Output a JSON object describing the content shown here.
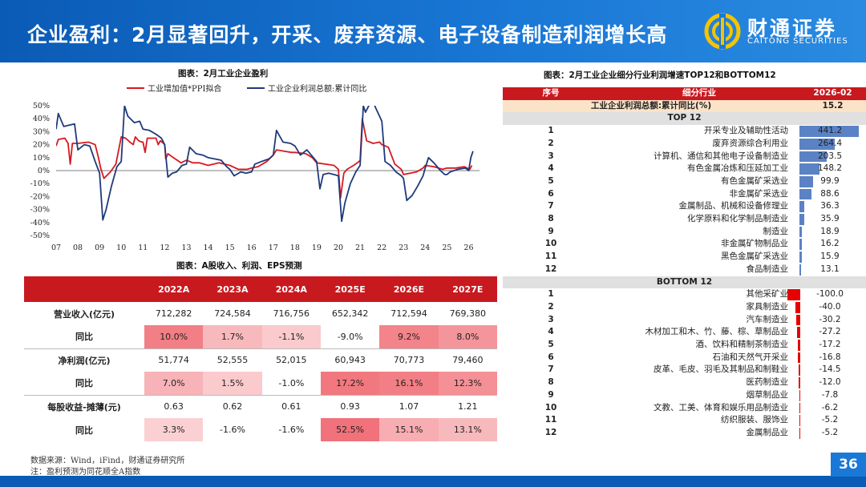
{
  "header": {
    "title": "企业盈利：2月显著回升，开采、废弃资源、电子设备制造利润增长高",
    "brand_cn": "财通证券",
    "brand_en": "CAITONG SECURITIES",
    "logo_icon": "caitong-logo-icon"
  },
  "colors": {
    "header_blue": "#0a5bb5",
    "accent_red": "#c8191f",
    "series_red": "#d7191f",
    "series_navy": "#1f3a7a",
    "bar_blue": "#5b82c4",
    "bar_red": "#e60000"
  },
  "chart_data": [
    {
      "type": "line",
      "title": "图表：2月工业企业盈利",
      "legend_position": "top",
      "ylim": [
        -50,
        50
      ],
      "yticks": [
        "50%",
        "40%",
        "30%",
        "20%",
        "10%",
        "0%",
        "-10%",
        "-20%",
        "-30%",
        "-40%",
        "-50%"
      ],
      "xticks": [
        "07",
        "08",
        "09",
        "10",
        "11",
        "12",
        "13",
        "14",
        "15",
        "16",
        "17",
        "18",
        "19",
        "20",
        "21",
        "22",
        "23",
        "24",
        "25",
        "26"
      ],
      "xlim": [
        2007,
        2026.5
      ],
      "series": [
        {
          "name": "工业增加值*PPI拟合",
          "color": "#d7191f",
          "points": [
            [
              2007.0,
              19
            ],
            [
              2007.1,
              24
            ],
            [
              2007.4,
              25
            ],
            [
              2007.55,
              21
            ],
            [
              2007.65,
              5
            ],
            [
              2007.75,
              21
            ],
            [
              2008.0,
              21
            ],
            [
              2008.5,
              22
            ],
            [
              2008.8,
              20
            ],
            [
              2008.95,
              10
            ],
            [
              2009.05,
              2
            ],
            [
              2009.2,
              -6
            ],
            [
              2009.5,
              -1
            ],
            [
              2009.75,
              5
            ],
            [
              2010.0,
              26
            ],
            [
              2010.2,
              25
            ],
            [
              2010.4,
              22
            ],
            [
              2010.55,
              20
            ],
            [
              2010.65,
              26
            ],
            [
              2010.8,
              23
            ],
            [
              2010.95,
              22
            ],
            [
              2011.0,
              22
            ],
            [
              2011.1,
              14
            ],
            [
              2011.2,
              25
            ],
            [
              2011.6,
              25
            ],
            [
              2011.7,
              20
            ],
            [
              2011.8,
              23
            ],
            [
              2011.95,
              21
            ],
            [
              2012.0,
              20
            ],
            [
              2012.05,
              9
            ],
            [
              2012.15,
              13
            ],
            [
              2012.4,
              10
            ],
            [
              2012.75,
              6
            ],
            [
              2013.0,
              8
            ],
            [
              2013.3,
              6
            ],
            [
              2013.6,
              6
            ],
            [
              2014.0,
              4
            ],
            [
              2014.5,
              6
            ],
            [
              2015.0,
              4
            ],
            [
              2015.4,
              1
            ],
            [
              2015.8,
              1
            ],
            [
              2016.0,
              2
            ],
            [
              2016.3,
              3
            ],
            [
              2016.7,
              7
            ],
            [
              2017.0,
              12
            ],
            [
              2017.15,
              16
            ],
            [
              2017.5,
              15
            ],
            [
              2017.85,
              14
            ],
            [
              2018.0,
              14
            ],
            [
              2018.5,
              13
            ],
            [
              2018.8,
              10
            ],
            [
              2019.0,
              6
            ],
            [
              2019.4,
              5
            ],
            [
              2019.8,
              4
            ],
            [
              2020.0,
              1
            ],
            [
              2020.1,
              -21
            ],
            [
              2020.25,
              -2
            ],
            [
              2020.4,
              1
            ],
            [
              2020.7,
              4
            ],
            [
              2020.95,
              7
            ],
            [
              2021.0,
              8
            ],
            [
              2021.1,
              40
            ],
            [
              2021.3,
              23
            ],
            [
              2021.6,
              21
            ],
            [
              2021.9,
              22
            ],
            [
              2022.0,
              20
            ],
            [
              2022.3,
              18
            ],
            [
              2022.6,
              5
            ],
            [
              2022.9,
              1
            ],
            [
              2023.0,
              -3
            ],
            [
              2023.3,
              -2
            ],
            [
              2023.6,
              -1
            ],
            [
              2023.9,
              2
            ],
            [
              2024.0,
              4
            ],
            [
              2024.4,
              3
            ],
            [
              2024.8,
              1
            ],
            [
              2025.0,
              2
            ],
            [
              2025.4,
              2
            ],
            [
              2025.8,
              3
            ],
            [
              2026.05,
              1
            ],
            [
              2026.15,
              4
            ]
          ]
        },
        {
          "name": "工业企业利润总额:累计同比",
          "color": "#1f3a7a",
          "points": [
            [
              2007.0,
              32
            ],
            [
              2007.1,
              44
            ],
            [
              2007.2,
              40
            ],
            [
              2007.35,
              34
            ],
            [
              2007.6,
              35
            ],
            [
              2007.85,
              36
            ],
            [
              2008.0,
              16
            ],
            [
              2008.3,
              20
            ],
            [
              2008.55,
              19
            ],
            [
              2008.8,
              7
            ],
            [
              2009.0,
              -2
            ],
            [
              2009.15,
              -38
            ],
            [
              2009.3,
              -30
            ],
            [
              2009.55,
              -12
            ],
            [
              2009.8,
              3
            ],
            [
              2010.0,
              7
            ],
            [
              2010.15,
              50
            ],
            [
              2010.3,
              42
            ],
            [
              2010.6,
              37
            ],
            [
              2010.85,
              38
            ],
            [
              2011.0,
              32
            ],
            [
              2011.3,
              31
            ],
            [
              2011.6,
              28
            ],
            [
              2011.85,
              25
            ],
            [
              2012.0,
              20
            ],
            [
              2012.15,
              -5
            ],
            [
              2012.35,
              -2
            ],
            [
              2012.55,
              -1
            ],
            [
              2012.8,
              4
            ],
            [
              2013.0,
              5
            ],
            [
              2013.15,
              18
            ],
            [
              2013.45,
              13
            ],
            [
              2013.75,
              12
            ],
            [
              2014.0,
              10
            ],
            [
              2014.3,
              9
            ],
            [
              2014.6,
              8
            ],
            [
              2014.85,
              3
            ],
            [
              2015.0,
              1
            ],
            [
              2015.2,
              -4
            ],
            [
              2015.5,
              -1
            ],
            [
              2015.75,
              -2
            ],
            [
              2016.0,
              -1
            ],
            [
              2016.15,
              5
            ],
            [
              2016.45,
              7
            ],
            [
              2016.8,
              9
            ],
            [
              2017.0,
              12
            ],
            [
              2017.15,
              31
            ],
            [
              2017.45,
              22
            ],
            [
              2017.8,
              21
            ],
            [
              2018.0,
              19
            ],
            [
              2018.25,
              12
            ],
            [
              2018.55,
              16
            ],
            [
              2018.8,
              11
            ],
            [
              2019.0,
              7
            ],
            [
              2019.15,
              -14
            ],
            [
              2019.3,
              -3
            ],
            [
              2019.55,
              -2
            ],
            [
              2019.8,
              -3
            ],
            [
              2020.0,
              -4
            ],
            [
              2020.15,
              -39
            ],
            [
              2020.3,
              -25
            ],
            [
              2020.55,
              -10
            ],
            [
              2020.8,
              -1
            ],
            [
              2021.0,
              4
            ],
            [
              2021.15,
              50
            ],
            [
              2021.25,
              45
            ],
            [
              2021.55,
              55
            ],
            [
              2021.7,
              49
            ],
            [
              2021.95,
              40
            ],
            [
              2022.0,
              38
            ],
            [
              2022.15,
              7
            ],
            [
              2022.4,
              4
            ],
            [
              2022.65,
              -1
            ],
            [
              2022.9,
              -4
            ],
            [
              2023.0,
              -6
            ],
            [
              2023.15,
              -23
            ],
            [
              2023.4,
              -19
            ],
            [
              2023.65,
              -12
            ],
            [
              2023.9,
              -4
            ],
            [
              2024.0,
              2
            ],
            [
              2024.15,
              10
            ],
            [
              2024.4,
              6
            ],
            [
              2024.7,
              0
            ],
            [
              2024.9,
              -3
            ],
            [
              2025.0,
              -3
            ],
            [
              2025.15,
              -1
            ],
            [
              2025.5,
              1
            ],
            [
              2025.85,
              2
            ],
            [
              2026.0,
              0
            ],
            [
              2026.1,
              10
            ],
            [
              2026.2,
              15
            ]
          ]
        }
      ]
    },
    {
      "type": "table",
      "title": "图表：A股收入、利润、EPS预测",
      "columns": [
        "2022A",
        "2023A",
        "2024A",
        "2025E",
        "2026E",
        "2027E"
      ],
      "rows": [
        {
          "label": "营业收入(亿元)",
          "values": [
            "712,282",
            "724,584",
            "716,756",
            "652,342",
            "712,594",
            "769,380"
          ],
          "shade": [
            null,
            null,
            null,
            null,
            null,
            null
          ]
        },
        {
          "label": "同比",
          "values": [
            "10.0%",
            "1.7%",
            "-1.1%",
            "-9.0%",
            "9.2%",
            "8.0%"
          ],
          "shade": [
            0.9,
            0.4,
            0.25,
            null,
            0.85,
            0.7
          ]
        },
        {
          "label": "净利润(亿元)",
          "values": [
            "51,774",
            "52,555",
            "52,015",
            "60,943",
            "70,773",
            "79,460"
          ],
          "shade": [
            null,
            null,
            null,
            null,
            null,
            null
          ]
        },
        {
          "label": "同比",
          "values": [
            "7.0%",
            "1.5%",
            "-1.0%",
            "17.2%",
            "16.1%",
            "12.3%"
          ],
          "shade": [
            0.45,
            0.25,
            null,
            0.95,
            0.9,
            0.75
          ]
        },
        {
          "label": "每股收益-摊薄(元)",
          "values": [
            "0.63",
            "0.62",
            "0.61",
            "0.93",
            "1.07",
            "1.21"
          ],
          "shade": [
            null,
            null,
            null,
            null,
            null,
            null
          ]
        },
        {
          "label": "同比",
          "values": [
            "3.3%",
            "-1.6%",
            "-1.6%",
            "52.5%",
            "15.1%",
            "13.1%"
          ],
          "shade": [
            0.2,
            null,
            null,
            1,
            0.5,
            0.4
          ]
        }
      ]
    },
    {
      "type": "table",
      "title": "图表：2月工业企业细分行业利润增速TOP12和BOTTOM12",
      "columns": [
        "序号",
        "细分行业",
        "2026-02"
      ],
      "total": {
        "label": "工业企业利润总额:累计同比(%)",
        "value": "15.2"
      },
      "top_label": "TOP 12",
      "bottom_label": "BOTTOM 12",
      "top": [
        {
          "rank": "1",
          "name": "开采专业及辅助性活动",
          "value": 441.2
        },
        {
          "rank": "2",
          "name": "废弃资源综合利用业",
          "value": 264.4
        },
        {
          "rank": "3",
          "name": "计算机、通信和其他电子设备制造业",
          "value": 203.5
        },
        {
          "rank": "4",
          "name": "有色金属冶炼和压延加工业",
          "value": 148.2
        },
        {
          "rank": "5",
          "name": "有色金属矿采选业",
          "value": 99.9
        },
        {
          "rank": "6",
          "name": "非金属矿采选业",
          "value": 88.6
        },
        {
          "rank": "7",
          "name": "金属制品、机械和设备修理业",
          "value": 36.3
        },
        {
          "rank": "8",
          "name": "化学原料和化学制品制造业",
          "value": 35.9
        },
        {
          "rank": "9",
          "name": "制造业",
          "value": 18.9
        },
        {
          "rank": "10",
          "name": "非金属矿物制品业",
          "value": 16.2
        },
        {
          "rank": "11",
          "name": "黑色金属矿采选业",
          "value": 15.9
        },
        {
          "rank": "12",
          "name": "食品制造业",
          "value": 13.1
        }
      ],
      "bottom": [
        {
          "rank": "1",
          "name": "其他采矿业",
          "value": -100.0
        },
        {
          "rank": "2",
          "name": "家具制造业",
          "value": -40.0
        },
        {
          "rank": "3",
          "name": "汽车制造业",
          "value": -30.2
        },
        {
          "rank": "4",
          "name": "木材加工和木、竹、藤、棕、草制品业",
          "value": -27.2
        },
        {
          "rank": "5",
          "name": "酒、饮料和精制茶制造业",
          "value": -17.2
        },
        {
          "rank": "6",
          "name": "石油和天然气开采业",
          "value": -16.8
        },
        {
          "rank": "7",
          "name": "皮革、毛皮、羽毛及其制品和制鞋业",
          "value": -14.5
        },
        {
          "rank": "8",
          "name": "医药制造业",
          "value": -12.0
        },
        {
          "rank": "9",
          "name": "烟草制品业",
          "value": -7.8
        },
        {
          "rank": "10",
          "name": "文教、工美、体育和娱乐用品制造业",
          "value": -6.2
        },
        {
          "rank": "11",
          "name": "纺织服装、服饰业",
          "value": -5.2
        },
        {
          "rank": "12",
          "name": "金属制品业",
          "value": -5.2
        }
      ]
    }
  ],
  "footer": {
    "source": "数据来源：Wind，iFind，财通证券研究所",
    "note": "注：盈利预测为同花顺全A指数",
    "page": "36"
  }
}
